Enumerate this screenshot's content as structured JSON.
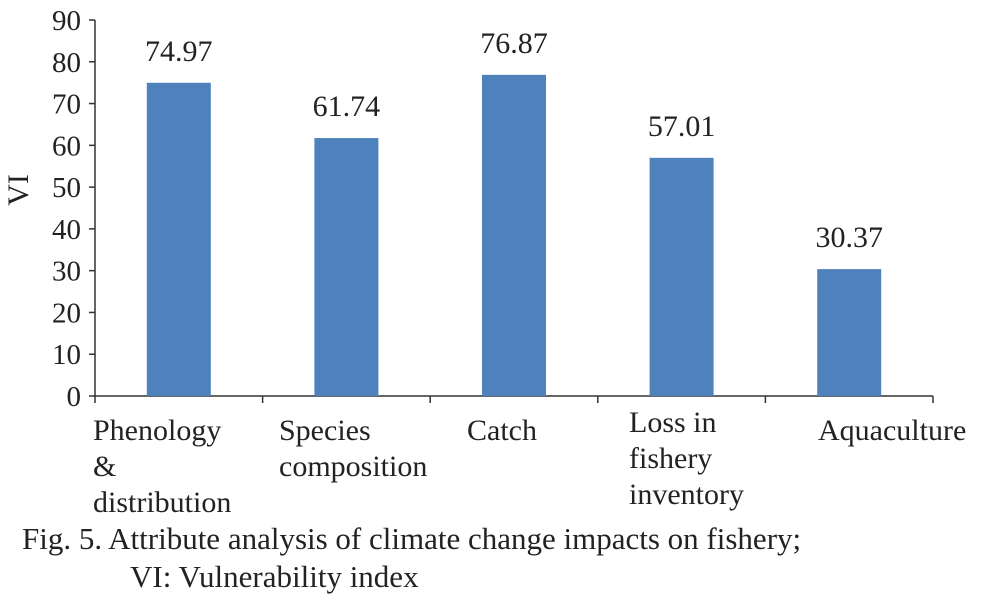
{
  "chart_data": {
    "type": "bar",
    "categories": [
      [
        "Phenology",
        "&",
        "distribution"
      ],
      [
        "Species",
        "composition"
      ],
      [
        "Catch"
      ],
      [
        "Loss in",
        "fishery",
        "inventory"
      ],
      [
        "Aquaculture"
      ]
    ],
    "values": [
      74.97,
      61.74,
      76.87,
      57.01,
      30.37
    ],
    "data_labels": [
      "74.97",
      "61.74",
      "76.87",
      "57.01",
      "30.37"
    ],
    "ylabel": "VI",
    "ylim": [
      0,
      90
    ],
    "yticks": [
      0,
      10,
      20,
      30,
      40,
      50,
      60,
      70,
      80,
      90
    ],
    "bar_color": "#4f81bd",
    "grid": false
  },
  "caption": {
    "line1": "Fig. 5.  Attribute analysis of climate change impacts on fishery;",
    "line2": "VI: Vulnerability index"
  }
}
